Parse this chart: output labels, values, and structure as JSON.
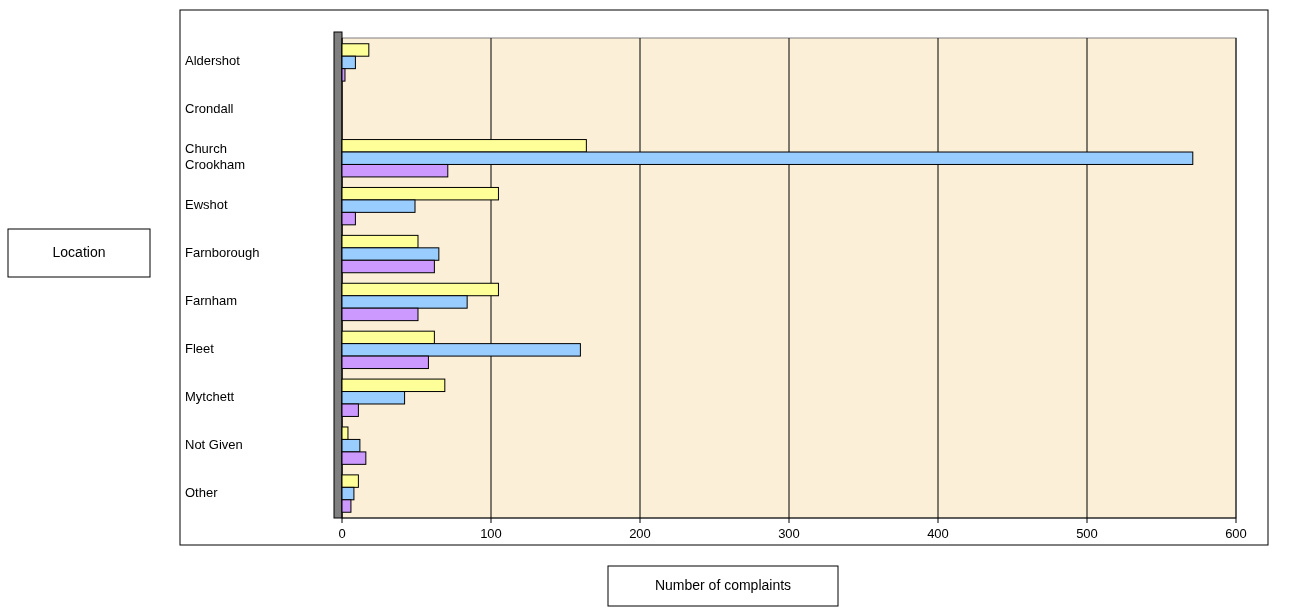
{
  "chart_data": {
    "type": "bar",
    "orientation": "horizontal",
    "xlabel": "Number of complaints",
    "annotations": [
      "Location"
    ],
    "categories": [
      "Aldershot",
      "Crondall",
      "Church Crookham",
      "Ewshot",
      "Farnborough",
      "Farnham",
      "Fleet",
      "Mytchett",
      "Not Given",
      "Other"
    ],
    "series": [
      {
        "color": "#ffff99",
        "values": [
          18,
          0,
          164,
          105,
          51,
          105,
          62,
          69,
          4,
          11
        ]
      },
      {
        "color": "#99ccff",
        "values": [
          9,
          0,
          571,
          49,
          65,
          84,
          160,
          42,
          12,
          8
        ]
      },
      {
        "color": "#cc99ff",
        "values": [
          2,
          0,
          71,
          9,
          62,
          51,
          58,
          11,
          16,
          6
        ]
      }
    ],
    "xlim": [
      0,
      600
    ],
    "xticks": [
      0,
      100,
      200,
      300,
      400,
      500,
      600
    ],
    "grid": "x"
  }
}
